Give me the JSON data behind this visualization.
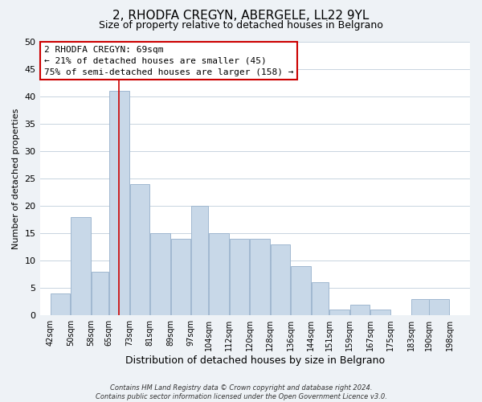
{
  "title": "2, RHODFA CREGYN, ABERGELE, LL22 9YL",
  "subtitle": "Size of property relative to detached houses in Belgrano",
  "xlabel": "Distribution of detached houses by size in Belgrano",
  "ylabel": "Number of detached properties",
  "bar_left_edges": [
    42,
    50,
    58,
    65,
    73,
    81,
    89,
    97,
    104,
    112,
    120,
    128,
    136,
    144,
    151,
    159,
    167,
    175,
    183,
    190
  ],
  "bar_widths": [
    8,
    8,
    7,
    8,
    8,
    8,
    8,
    7,
    8,
    8,
    8,
    8,
    8,
    7,
    8,
    8,
    8,
    8,
    7,
    8
  ],
  "bar_heights": [
    4,
    18,
    8,
    41,
    24,
    15,
    14,
    20,
    15,
    14,
    14,
    13,
    9,
    6,
    1,
    2,
    1,
    0,
    3,
    3
  ],
  "bar_color": "#c8d8e8",
  "bar_edge_color": "#a0b8d0",
  "subject_line_x": 69,
  "subject_line_color": "#cc0000",
  "annotation_lines": [
    "2 RHODFA CREGYN: 69sqm",
    "← 21% of detached houses are smaller (45)",
    "75% of semi-detached houses are larger (158) →"
  ],
  "tick_labels": [
    "42sqm",
    "50sqm",
    "58sqm",
    "65sqm",
    "73sqm",
    "81sqm",
    "89sqm",
    "97sqm",
    "104sqm",
    "112sqm",
    "120sqm",
    "128sqm",
    "136sqm",
    "144sqm",
    "151sqm",
    "159sqm",
    "167sqm",
    "175sqm",
    "183sqm",
    "190sqm",
    "198sqm"
  ],
  "tick_positions": [
    42,
    50,
    58,
    65,
    73,
    81,
    89,
    97,
    104,
    112,
    120,
    128,
    136,
    144,
    151,
    159,
    167,
    175,
    183,
    190,
    198
  ],
  "ylim": [
    0,
    50
  ],
  "yticks": [
    0,
    5,
    10,
    15,
    20,
    25,
    30,
    35,
    40,
    45,
    50
  ],
  "xlim_min": 38,
  "xlim_max": 206,
  "footer_lines": [
    "Contains HM Land Registry data © Crown copyright and database right 2024.",
    "Contains public sector information licensed under the Open Government Licence v3.0."
  ],
  "background_color": "#eef2f6",
  "plot_background_color": "#ffffff",
  "grid_color": "#c8d4e0",
  "title_fontsize": 11,
  "subtitle_fontsize": 9,
  "ylabel_fontsize": 8,
  "xlabel_fontsize": 9,
  "tick_fontsize": 7,
  "ytick_fontsize": 8,
  "annotation_fontsize": 8,
  "footer_fontsize": 6
}
